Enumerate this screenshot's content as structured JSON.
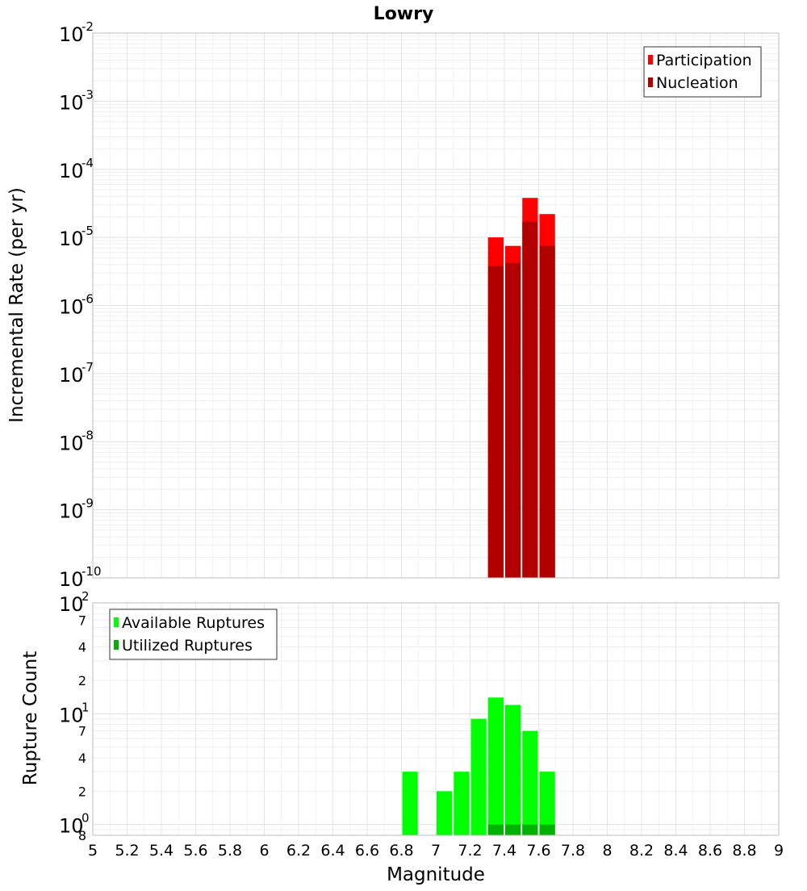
{
  "chart_data": [
    {
      "type": "bar",
      "title": "Lowry",
      "xlabel": "Magnitude",
      "ylabel": "Incremental Rate (per yr)",
      "yscale": "log",
      "xlim": [
        5,
        9
      ],
      "ylim": [
        1e-10,
        0.01
      ],
      "grid": true,
      "legend_position": "top-right",
      "y_major_ticks": [
        {
          "base": "10",
          "exp": "-10",
          "value": 1e-10
        },
        {
          "base": "10",
          "exp": "-9",
          "value": 1e-09
        },
        {
          "base": "10",
          "exp": "-8",
          "value": 1e-08
        },
        {
          "base": "10",
          "exp": "-7",
          "value": 1e-07
        },
        {
          "base": "10",
          "exp": "-6",
          "value": 1e-06
        },
        {
          "base": "10",
          "exp": "-5",
          "value": 1e-05
        },
        {
          "base": "10",
          "exp": "-4",
          "value": 0.0001
        },
        {
          "base": "10",
          "exp": "-3",
          "value": 0.001
        },
        {
          "base": "10",
          "exp": "-2",
          "value": 0.01
        }
      ],
      "bar_width": 0.1,
      "series": [
        {
          "name": "Participation",
          "color": "#ff0000",
          "x": [
            7.35,
            7.45,
            7.55,
            7.65
          ],
          "values": [
            1e-05,
            7.5e-06,
            3.8e-05,
            2.2e-05
          ]
        },
        {
          "name": "Nucleation",
          "color": "#b20000",
          "x": [
            7.35,
            7.45,
            7.55,
            7.65
          ],
          "values": [
            3.8e-06,
            4.2e-06,
            1.7e-05,
            7.5e-06
          ]
        }
      ]
    },
    {
      "type": "bar",
      "xlabel": "Magnitude",
      "ylabel": "Rupture Count",
      "yscale": "log",
      "xlim": [
        5,
        9
      ],
      "ylim": [
        0.8,
        100
      ],
      "grid": true,
      "legend_position": "top-left",
      "x_ticks": [
        "5",
        "5.2",
        "5.4",
        "5.6",
        "5.8",
        "6",
        "6.2",
        "6.4",
        "6.6",
        "6.8",
        "7",
        "7.2",
        "7.4",
        "7.6",
        "7.8",
        "8",
        "8.2",
        "8.4",
        "8.6",
        "8.8",
        "9"
      ],
      "y_major_ticks": [
        {
          "base": "10",
          "exp": "0",
          "value": 1
        },
        {
          "base": "10",
          "exp": "1",
          "value": 10
        },
        {
          "base": "10",
          "exp": "2",
          "value": 100
        }
      ],
      "y_minor_tick_labels": [
        {
          "label": "8",
          "value": 0.8
        },
        {
          "label": "2",
          "value": 2
        },
        {
          "label": "4",
          "value": 4
        },
        {
          "label": "7",
          "value": 7
        },
        {
          "label": "2",
          "value": 20
        },
        {
          "label": "4",
          "value": 40
        },
        {
          "label": "7",
          "value": 70
        }
      ],
      "bar_width": 0.1,
      "series": [
        {
          "name": "Available Ruptures",
          "color": "#00ff00",
          "x": [
            6.85,
            7.05,
            7.15,
            7.25,
            7.35,
            7.45,
            7.55,
            7.65
          ],
          "values": [
            3,
            2,
            3,
            9,
            14,
            12,
            7,
            3
          ]
        },
        {
          "name": "Utilized Ruptures",
          "color": "#00b200",
          "x": [
            7.35,
            7.45,
            7.55,
            7.65
          ],
          "values": [
            1,
            1,
            1,
            1
          ]
        }
      ]
    }
  ]
}
